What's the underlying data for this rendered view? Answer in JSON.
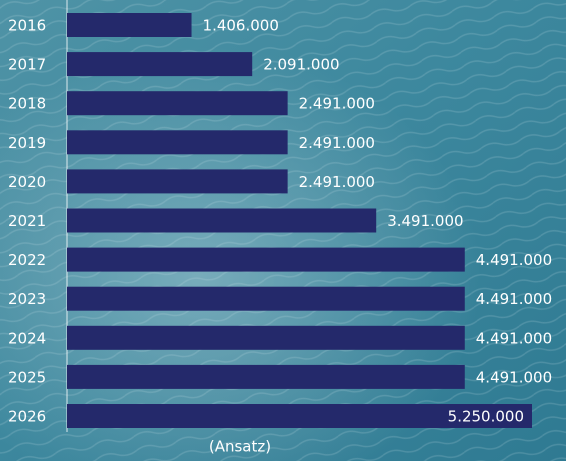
{
  "chart_data": {
    "type": "hbar",
    "categories": [
      "2016",
      "2017",
      "2018",
      "2019",
      "2020",
      "2021",
      "2022",
      "2023",
      "2024",
      "2025",
      "2026"
    ],
    "values": [
      1406000,
      2091000,
      2491000,
      2491000,
      2491000,
      3491000,
      4491000,
      4491000,
      4491000,
      4491000,
      5250000
    ],
    "value_labels": [
      "1.406.000",
      "2.091.000",
      "2.491.000",
      "2.491.000",
      "2.491.000",
      "3.491.000",
      "4.491.000",
      "4.491.000",
      "4.491.000",
      "4.491.000",
      "5.250.000"
    ],
    "color": "#24296b",
    "xlim": [
      0,
      5600000
    ],
    "annotation": "(Ansatz)"
  }
}
